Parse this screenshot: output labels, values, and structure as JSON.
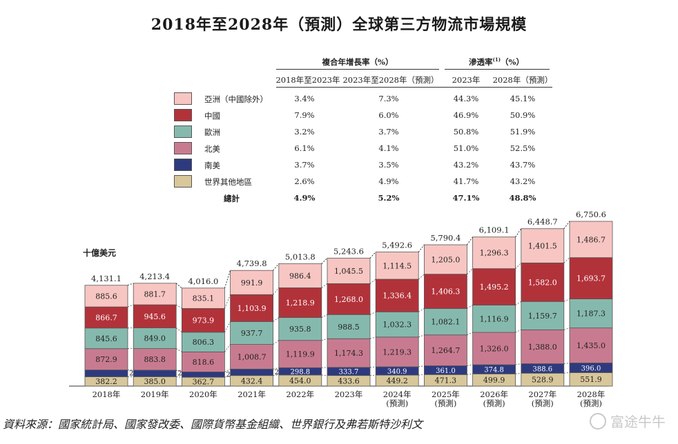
{
  "title": "2018年至2028年（預測）全球第三方物流市場規模",
  "table": {
    "group1": "複合年增長率（%）",
    "group2_main": "滲透率",
    "group2_sup": "(1)",
    "group2_tail": "（%）",
    "sub_headers": [
      "2018年至2023年",
      "2023年至2028年（預測）",
      "2023年",
      "2028年（預測）"
    ],
    "rows": [
      {
        "label": "亞洲（中國除外）",
        "color": "#f7c6c2",
        "v1": "3.4%",
        "v2": "7.3%",
        "v3": "44.3%",
        "v4": "45.1%"
      },
      {
        "label": "中國",
        "color": "#b2323a",
        "v1": "7.9%",
        "v2": "6.0%",
        "v3": "46.9%",
        "v4": "50.9%"
      },
      {
        "label": "歐洲",
        "color": "#86b9ad",
        "v1": "3.2%",
        "v2": "3.7%",
        "v3": "50.8%",
        "v4": "51.9%"
      },
      {
        "label": "北美",
        "color": "#c87b90",
        "v1": "6.1%",
        "v2": "4.1%",
        "v3": "51.0%",
        "v4": "52.5%"
      },
      {
        "label": "南美",
        "color": "#2e3a7e",
        "v1": "3.7%",
        "v2": "3.5%",
        "v3": "43.2%",
        "v4": "43.7%"
      },
      {
        "label": "世界其他地區",
        "color": "#d8c79a",
        "v1": "2.6%",
        "v2": "4.9%",
        "v3": "41.7%",
        "v4": "43.2%"
      }
    ],
    "total": {
      "label": "總計",
      "v1": "4.9%",
      "v2": "5.2%",
      "v3": "47.1%",
      "v4": "48.8%"
    }
  },
  "unit_label": "十億美元",
  "chart_data": {
    "type": "bar",
    "stacked": true,
    "categories": [
      "2018年",
      "2019年",
      "2020年",
      "2021年",
      "2022年",
      "2023年",
      "2024年\n(預測)",
      "2025年\n(預測)",
      "2026年\n(預測)",
      "2027年\n(預測)",
      "2028年\n(預測)"
    ],
    "series": [
      {
        "name": "世界其他地區",
        "color": "#d8c79a",
        "values": [
          382.2,
          385.0,
          362.7,
          432.4,
          454.0,
          433.6,
          449.2,
          471.3,
          499.9,
          528.9,
          551.9
        ]
      },
      {
        "name": "南美",
        "color": "#2e3a7e",
        "values": [
          278.1,
          268.3,
          219.4,
          265.2,
          298.8,
          333.7,
          340.9,
          361.0,
          374.8,
          388.6,
          396.0
        ]
      },
      {
        "name": "北美",
        "color": "#c87b90",
        "values": [
          872.9,
          883.8,
          818.6,
          1008.7,
          1119.9,
          1174.3,
          1219.3,
          1264.7,
          1326.0,
          1388.0,
          1435.0
        ]
      },
      {
        "name": "歐洲",
        "color": "#86b9ad",
        "values": [
          845.6,
          849.0,
          806.3,
          937.7,
          935.8,
          988.5,
          1032.3,
          1082.1,
          1116.9,
          1159.7,
          1187.3
        ]
      },
      {
        "name": "中國",
        "color": "#b2323a",
        "values": [
          866.7,
          945.6,
          973.9,
          1103.9,
          1218.9,
          1268.0,
          1336.4,
          1406.3,
          1495.2,
          1582.0,
          1693.7
        ]
      },
      {
        "name": "亞洲（中國除外）",
        "color": "#f7c6c2",
        "values": [
          885.6,
          881.7,
          835.1,
          991.9,
          986.4,
          1045.5,
          1114.5,
          1205.0,
          1296.3,
          1401.5,
          1486.7
        ]
      }
    ],
    "labels": [
      [
        "382.2",
        "278.1",
        "872.9",
        "845.6",
        "866.7",
        "885.6"
      ],
      [
        "385.0",
        "268.3",
        "883.8",
        "849.0",
        "945.6",
        "881.7"
      ],
      [
        "362.7",
        "219.4",
        "818.6",
        "806.3",
        "973.9",
        "835.1"
      ],
      [
        "432.4",
        "265.2",
        "1,008.7",
        "937.7",
        "1,103.9",
        "991.9"
      ],
      [
        "454.0",
        "298.8",
        "1,119.9",
        "935.8",
        "1,218.9",
        "986.4"
      ],
      [
        "433.6",
        "333.7",
        "1,174.3",
        "988.5",
        "1,268.0",
        "1,045.5"
      ],
      [
        "449.2",
        "340.9",
        "1,219.3",
        "1,032.3",
        "1,336.4",
        "1,114.5"
      ],
      [
        "471.3",
        "361.0",
        "1,264.7",
        "1,082.1",
        "1,406.3",
        "1,205.0"
      ],
      [
        "499.9",
        "374.8",
        "1,326.0",
        "1,116.9",
        "1,495.2",
        "1,296.3"
      ],
      [
        "528.9",
        "388.6",
        "1,388.0",
        "1,159.7",
        "1,582.0",
        "1,401.5"
      ],
      [
        "551.9",
        "396.0",
        "1,435.0",
        "1,187.3",
        "1,693.7",
        "1,486.7"
      ]
    ],
    "totals": [
      4131.1,
      4213.4,
      4016.0,
      4739.8,
      5013.8,
      5243.6,
      5492.6,
      5790.4,
      6109.1,
      6448.7,
      6750.6
    ],
    "total_labels": [
      "4,131.1",
      "4,213.4",
      "4,016.0",
      "4,739.8",
      "5,013.8",
      "5,243.6",
      "5,492.6",
      "5,790.4",
      "6,109.1",
      "6,448.7",
      "6,750.6"
    ],
    "ylabel": "十億美元"
  },
  "source": "資料來源：國家統計局、國家發改委、國際貨幣基金組織、世界銀行及弗若斯特沙利文",
  "watermark": "富途牛牛"
}
